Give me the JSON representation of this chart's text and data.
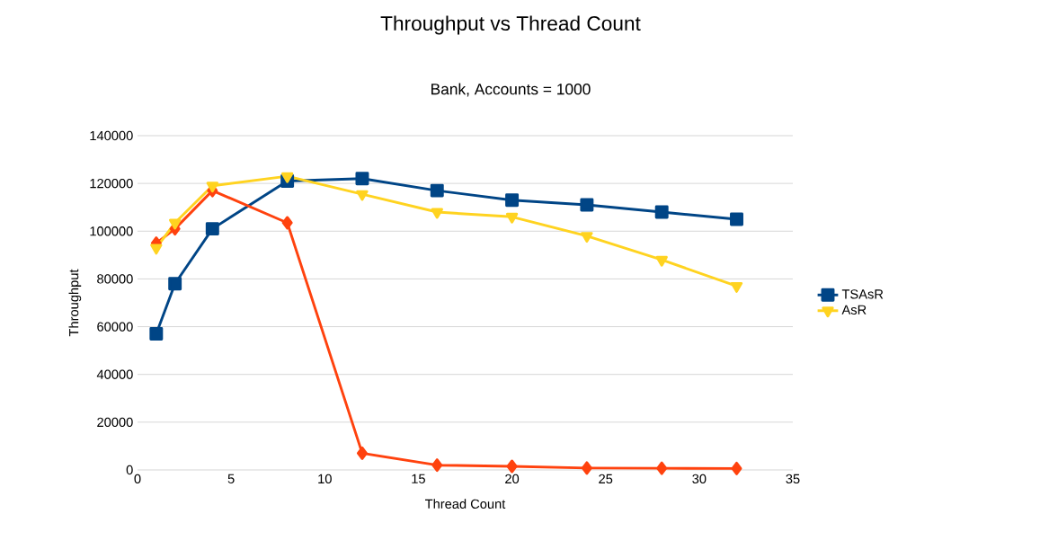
{
  "chart_data": {
    "type": "line",
    "title": "Throughput vs Thread Count",
    "subtitle": "Bank, Accounts = 1000",
    "xlabel": "Thread Count",
    "ylabel": "Throughput",
    "x": [
      1,
      2,
      4,
      8,
      12,
      16,
      20,
      24,
      28,
      32
    ],
    "series": [
      {
        "name": "TSAsR",
        "color": "#004586",
        "marker": "square",
        "values": [
          57000,
          78000,
          101000,
          121000,
          122000,
          117000,
          113000,
          111000,
          108000,
          105000
        ]
      },
      {
        "color": "#ff420e",
        "marker": "diamond",
        "values": [
          95000,
          101000,
          117000,
          103500,
          7000,
          2000,
          1500,
          800,
          700,
          600
        ]
      },
      {
        "name": "AsR",
        "color": "#ffd320",
        "marker": "triangle",
        "values": [
          93000,
          103500,
          119000,
          123000,
          115500,
          108000,
          106000,
          98000,
          88000,
          77000
        ]
      }
    ],
    "xlim": [
      0,
      35
    ],
    "xticks": [
      0,
      5,
      10,
      15,
      20,
      25,
      30,
      35
    ],
    "ylim": [
      0,
      140000
    ],
    "yticks": [
      0,
      20000,
      40000,
      60000,
      80000,
      100000,
      120000,
      140000
    ],
    "grid": "y",
    "legend": "right",
    "line_style": "solid"
  }
}
